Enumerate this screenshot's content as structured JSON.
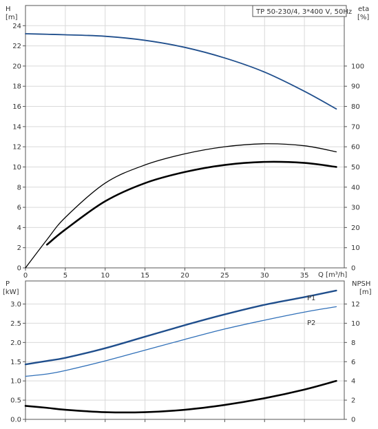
{
  "chart_data": [
    {
      "type": "line",
      "title": "TP 50-230/4, 3*400 V, 50Hz",
      "x_axis": {
        "label": "Q [m³/h]",
        "range": [
          0,
          40
        ],
        "ticks": [
          0,
          5,
          10,
          15,
          20,
          25,
          30,
          35
        ]
      },
      "y_axis_left": {
        "label_line1": "H",
        "label_line2": "[m]",
        "range": [
          0,
          26
        ],
        "ticks": [
          0,
          2,
          4,
          6,
          8,
          10,
          12,
          14,
          16,
          18,
          20,
          22,
          24
        ]
      },
      "y_axis_right": {
        "label_line1": "eta",
        "label_line2": "[%]",
        "range": [
          0,
          130
        ],
        "ticks": [
          0,
          10,
          20,
          30,
          40,
          50,
          60,
          70,
          80,
          90,
          100
        ]
      },
      "grid": true,
      "series": [
        {
          "axis": "left",
          "color": "#1f4e8c",
          "x": [
            0,
            2.7,
            5,
            10,
            15,
            20,
            25,
            30,
            35,
            39
          ],
          "y": [
            23.2,
            23.15,
            23.1,
            22.95,
            22.55,
            21.85,
            20.8,
            19.4,
            17.5,
            15.75
          ]
        },
        {
          "axis": "right",
          "color": "#000000",
          "x": [
            0,
            2.7,
            5,
            10,
            15,
            20,
            25,
            30,
            35,
            39
          ],
          "y": [
            0,
            14,
            25,
            42,
            51,
            56.5,
            60,
            61.5,
            60.5,
            57.5
          ]
        },
        {
          "axis": "right",
          "color": "#000000",
          "x": [
            2.7,
            5,
            10,
            15,
            20,
            25,
            30,
            35,
            39
          ],
          "y": [
            11.5,
            19,
            33,
            42,
            47.5,
            51,
            52.5,
            52,
            50
          ]
        }
      ]
    },
    {
      "type": "line",
      "x_axis": {
        "range": [
          0,
          40
        ],
        "ticks": [
          0,
          5,
          10,
          15,
          20,
          25,
          30,
          35
        ]
      },
      "y_axis_left": {
        "label_line1": "P",
        "label_line2": "[kW]",
        "range": [
          0,
          3.6
        ],
        "ticks": [
          0.0,
          0.5,
          1.0,
          1.5,
          2.0,
          2.5,
          3.0
        ]
      },
      "y_axis_right": {
        "label_line1": "NPSH",
        "label_line2": "[m]",
        "range": [
          0,
          14.4
        ],
        "ticks": [
          0,
          2,
          4,
          6,
          8,
          10,
          12
        ]
      },
      "grid": true,
      "series": [
        {
          "name": "P1",
          "axis": "left",
          "color": "#1f4e8c",
          "x": [
            0,
            2.7,
            5,
            10,
            15,
            20,
            25,
            30,
            35,
            39
          ],
          "y": [
            1.43,
            1.52,
            1.6,
            1.85,
            2.15,
            2.45,
            2.73,
            2.98,
            3.18,
            3.35
          ]
        },
        {
          "name": "P2",
          "axis": "left",
          "color": "#2f6fb8",
          "x": [
            0,
            2.7,
            5,
            10,
            15,
            20,
            25,
            30,
            35,
            39
          ],
          "y": [
            1.12,
            1.18,
            1.27,
            1.52,
            1.8,
            2.08,
            2.35,
            2.58,
            2.79,
            2.93
          ]
        },
        {
          "axis": "right",
          "color": "#000000",
          "x": [
            0,
            2.7,
            5,
            10,
            15,
            20,
            25,
            30,
            35,
            39
          ],
          "y": [
            1.4,
            1.2,
            1.0,
            0.75,
            0.75,
            1.0,
            1.5,
            2.2,
            3.1,
            4.0
          ]
        }
      ]
    }
  ]
}
